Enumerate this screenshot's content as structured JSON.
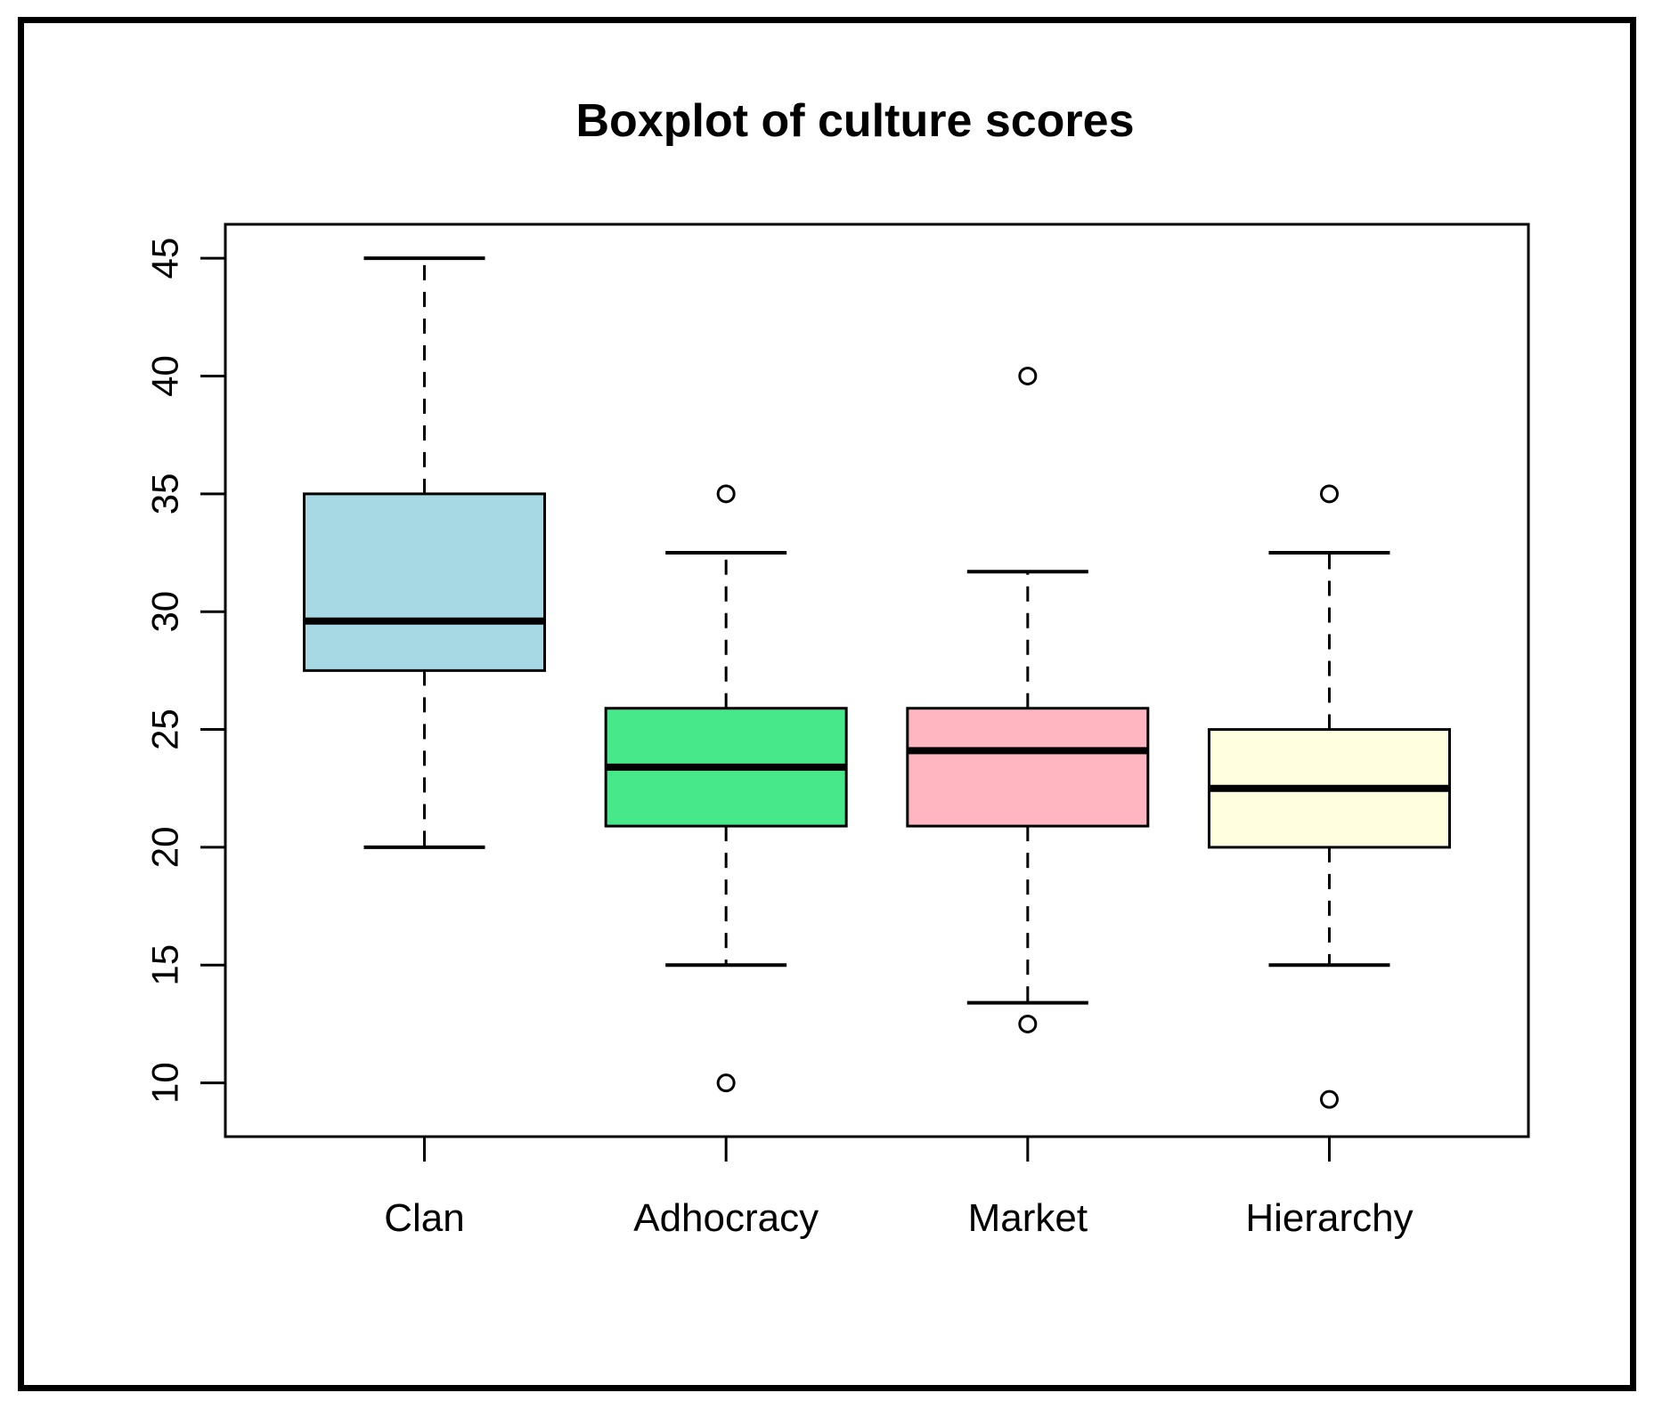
{
  "title": "Boxplot of culture scores",
  "chart_data": {
    "type": "boxplot",
    "title": "Boxplot of culture scores",
    "categories": [
      "Clan",
      "Adhocracy",
      "Market",
      "Hierarchy"
    ],
    "y_ticks": [
      10,
      15,
      20,
      25,
      30,
      35,
      40,
      45
    ],
    "ylim": [
      7.7,
      46.4
    ],
    "grid": false,
    "legend": "none",
    "line_color": "#000000",
    "series": [
      {
        "name": "Clan",
        "whisker_low": 20,
        "q1": 27.5,
        "median": 29.6,
        "q3": 35,
        "whisker_high": 45,
        "outliers": [],
        "fill": "#A7D9E4"
      },
      {
        "name": "Adhocracy",
        "whisker_low": 15,
        "q1": 20.9,
        "median": 23.4,
        "q3": 25.9,
        "whisker_high": 32.5,
        "outliers": [
          35,
          10
        ],
        "fill": "#47E88A"
      },
      {
        "name": "Market",
        "whisker_low": 13.4,
        "q1": 20.9,
        "median": 24.1,
        "q3": 25.9,
        "whisker_high": 31.7,
        "outliers": [
          40,
          12.5
        ],
        "fill": "#FFB6C1"
      },
      {
        "name": "Hierarchy",
        "whisker_low": 15,
        "q1": 20,
        "median": 22.5,
        "q3": 25,
        "whisker_high": 32.5,
        "outliers": [
          35,
          9.3
        ],
        "fill": "#FFFFE0"
      }
    ]
  }
}
